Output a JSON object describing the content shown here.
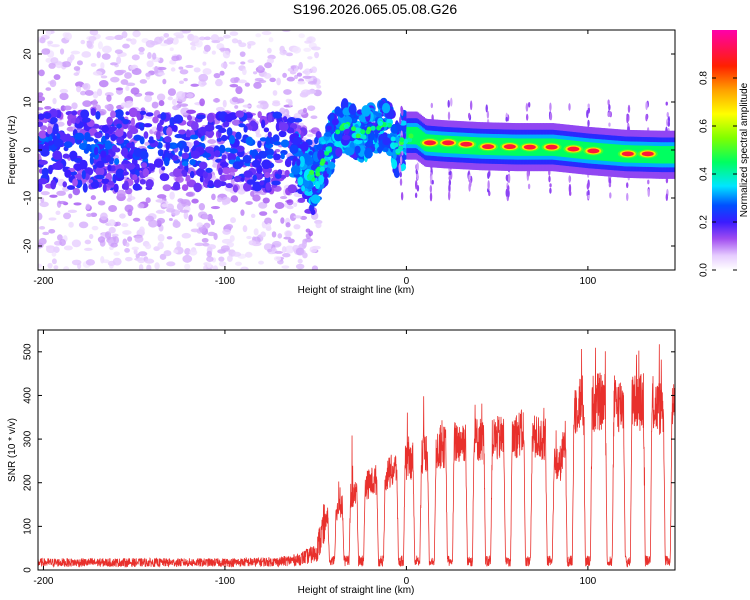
{
  "title": "S196.2026.065.05.08.G26",
  "chart_data": [
    {
      "type": "heatmap",
      "xlabel": "Height of straight line (km)",
      "ylabel": "Frequency (Hz)",
      "xlim": [
        -203,
        148
      ],
      "ylim": [
        -25,
        25
      ],
      "xticks": [
        -200,
        -100,
        0,
        100
      ],
      "yticks": [
        -20,
        -10,
        0,
        10,
        20
      ],
      "colorbar": {
        "label": "Normalized spectral amplitude",
        "range": [
          0,
          1
        ],
        "ticks": [
          "0.0",
          "0.2",
          "0.4",
          "0.6",
          "0.8"
        ],
        "colors": [
          "#ffffff",
          "#d9b3ff",
          "#8a2be2",
          "#3b1cff",
          "#0000ff",
          "#00ffff",
          "#00ff00",
          "#ffff00",
          "#ff8000",
          "#ff0000",
          "#ff00ff"
        ]
      },
      "dominant_frequency_track": {
        "x": [
          -200,
          -150,
          -100,
          -60,
          -55,
          -50,
          -45,
          -40,
          -35,
          -30,
          -25,
          -20,
          -15,
          -10,
          -5,
          0,
          5,
          10,
          20,
          40,
          60,
          80,
          100,
          120,
          140,
          148
        ],
        "y": [
          0,
          0,
          0,
          -1,
          -5,
          -6,
          -2,
          3,
          5,
          4,
          3,
          4,
          5,
          5,
          0,
          3,
          3,
          1.5,
          1.2,
          0.8,
          0.6,
          0.6,
          -0.2,
          -0.8,
          -1.0,
          -1.0
        ]
      },
      "peaks": [
        {
          "x": 13,
          "y": 1.5,
          "amp": 0.95
        },
        {
          "x": 23,
          "y": 1.5,
          "amp": 0.95
        },
        {
          "x": 33,
          "y": 1.2,
          "amp": 0.95
        },
        {
          "x": 45,
          "y": 0.7,
          "amp": 0.95
        },
        {
          "x": 57,
          "y": 0.7,
          "amp": 0.95
        },
        {
          "x": 68,
          "y": 0.6,
          "amp": 0.95
        },
        {
          "x": 80,
          "y": 0.6,
          "amp": 0.95
        },
        {
          "x": 92,
          "y": 0.2,
          "amp": 0.95
        },
        {
          "x": 103,
          "y": -0.2,
          "amp": 0.95
        },
        {
          "x": 122,
          "y": -0.8,
          "amp": 0.95
        },
        {
          "x": 133,
          "y": -0.8,
          "amp": 0.95
        }
      ]
    },
    {
      "type": "line",
      "xlabel": "Height of straight line (km)",
      "ylabel": "SNR (10 * v/v)",
      "xlim": [
        -203,
        148
      ],
      "ylim": [
        0,
        550
      ],
      "xticks": [
        -200,
        -100,
        0,
        100
      ],
      "yticks": [
        0,
        100,
        200,
        300,
        400,
        500
      ],
      "series": [
        {
          "name": "SNR",
          "color": "#e8302c",
          "x": [
            -203,
            -150,
            -100,
            -70,
            -60,
            -50,
            -45,
            -40,
            -35,
            -30,
            -25,
            -20,
            -15,
            -10,
            -5,
            0,
            5,
            10,
            15,
            20,
            25,
            30,
            35,
            40,
            45,
            50,
            55,
            60,
            65,
            70,
            75,
            80,
            85,
            90,
            95,
            100,
            105,
            110,
            115,
            120,
            125,
            130,
            135,
            140,
            148
          ],
          "baseline": [
            18,
            18,
            18,
            20,
            25,
            40,
            110,
            130,
            150,
            170,
            185,
            200,
            210,
            220,
            235,
            245,
            255,
            270,
            275,
            280,
            290,
            295,
            300,
            300,
            300,
            300,
            305,
            310,
            315,
            305,
            300,
            230,
            245,
            350,
            385,
            380,
            385,
            385,
            380,
            380,
            385,
            385,
            380,
            370,
            375
          ]
        }
      ],
      "dropouts_x": [
        -60,
        -41,
        -33,
        -25,
        -14,
        -3,
        6,
        14,
        24,
        35,
        45,
        56,
        67,
        79,
        90,
        100,
        112,
        122,
        133,
        144
      ]
    }
  ]
}
